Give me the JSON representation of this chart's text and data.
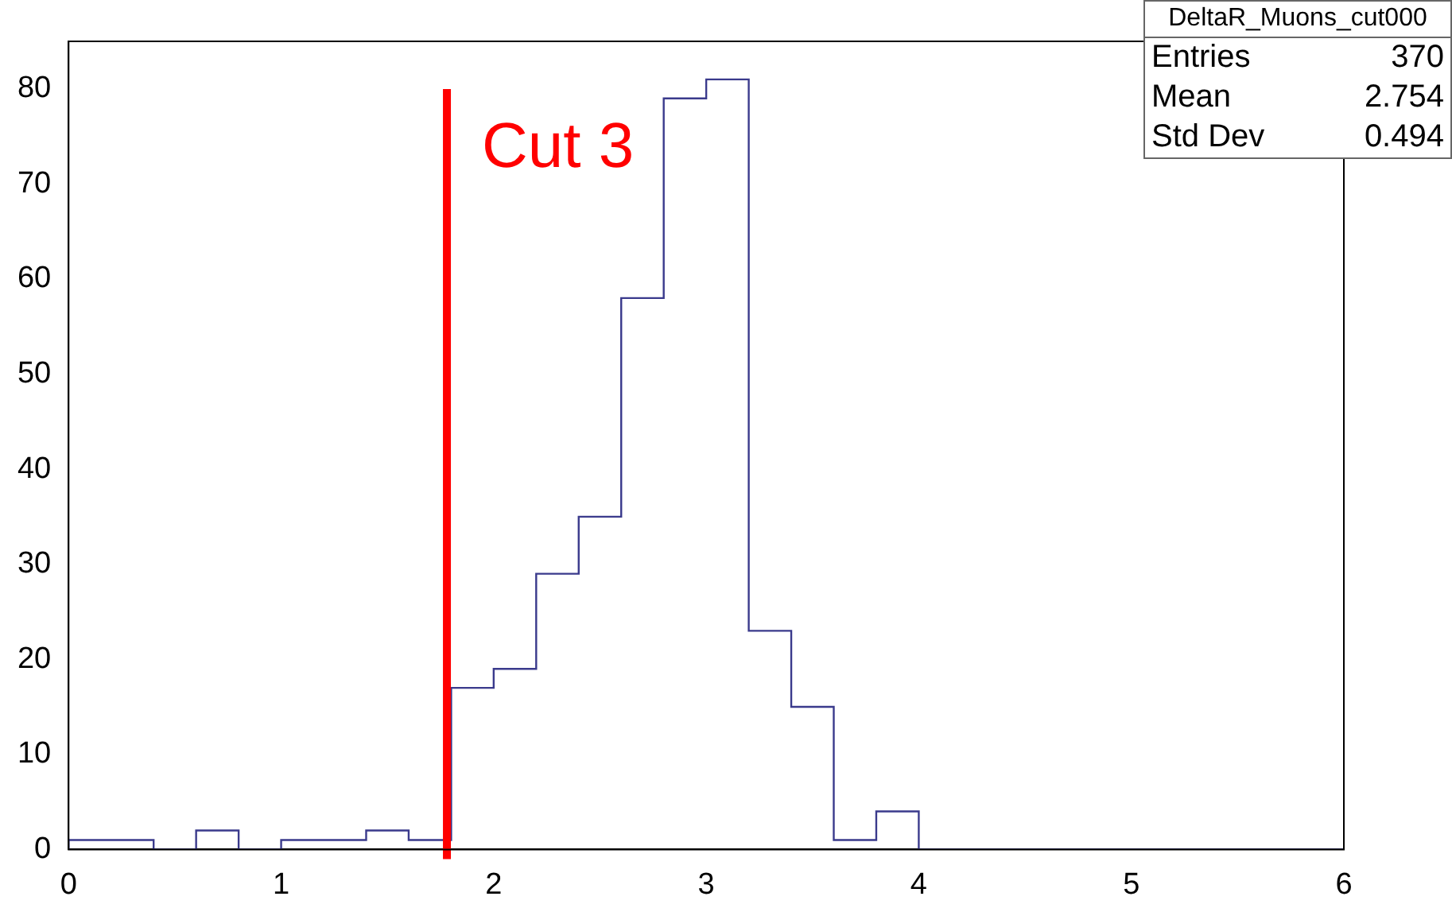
{
  "chart_data": {
    "type": "histogram",
    "bins": [
      0,
      0.2,
      0.4,
      0.6,
      0.8,
      1.0,
      1.2,
      1.4,
      1.6,
      1.8,
      2.0,
      2.2,
      2.4,
      2.6,
      2.8,
      3.0,
      3.2,
      3.4,
      3.6,
      3.8,
      4.0,
      4.2,
      4.4,
      4.6,
      4.8,
      5.0,
      5.2,
      5.4,
      5.6,
      5.8,
      6.0
    ],
    "values": [
      1,
      1,
      0,
      2,
      0,
      1,
      1,
      2,
      1,
      17,
      19,
      29,
      35,
      58,
      79,
      81,
      23,
      15,
      1,
      4,
      0,
      0,
      0,
      0,
      0,
      0,
      0,
      0,
      0,
      0
    ],
    "color": "#3a3a8c",
    "xlim": [
      0,
      6
    ],
    "xticks": [
      0,
      1,
      2,
      3,
      4,
      5,
      6
    ],
    "ylim": [
      0,
      85
    ],
    "yticks": [
      0,
      10,
      20,
      30,
      40,
      50,
      60,
      70,
      80
    ],
    "grid": false,
    "legend": false,
    "ref_lines": [
      {
        "axis": "x",
        "value": 1.78,
        "label": "Cut 3",
        "color": "#ff0000"
      }
    ],
    "annotations": [
      "DeltaR_Muons_cut000",
      "Entries",
      "370",
      "Mean",
      "2.754",
      "Std Dev",
      "0.494"
    ]
  }
}
